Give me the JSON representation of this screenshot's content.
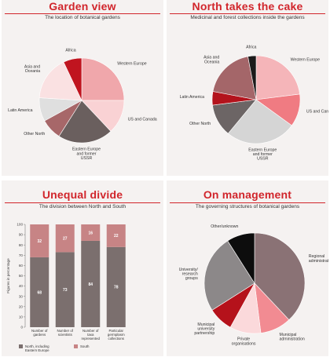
{
  "chart_data": [
    {
      "type": "pie",
      "title": "Garden view",
      "subtitle": "The location of botanical gardens",
      "slices": [
        {
          "label": "Western Europe",
          "value": 25,
          "color": "#f0a7ab"
        },
        {
          "label": "US and Canada",
          "value": 13,
          "color": "#f9d2d4"
        },
        {
          "label": "Eastern Europe and former USSR",
          "value": 21,
          "color": "#6a5f5e"
        },
        {
          "label": "Other North",
          "value": 8,
          "color": "#a76769"
        },
        {
          "label": "Latin America",
          "value": 9,
          "color": "#dfdfdf"
        },
        {
          "label": "Asia and Oceania",
          "value": 17,
          "color": "#fae1e2"
        },
        {
          "label": "Africa",
          "value": 7,
          "color": "#c0141f"
        }
      ]
    },
    {
      "type": "pie",
      "title": "North takes the cake",
      "subtitle": "Medicinal and forest collections inside the gardens",
      "slices": [
        {
          "label": "Western Europe",
          "value": 23,
          "color": "#f5b5b9"
        },
        {
          "label": "US and Canada",
          "value": 12,
          "color": "#f07b82"
        },
        {
          "label": "Eastern Europe and former USSR",
          "value": 26,
          "color": "#d5d5d5"
        },
        {
          "label": "Other North",
          "value": 12,
          "color": "#6c6565"
        },
        {
          "label": "Latin America",
          "value": 5,
          "color": "#b3131c"
        },
        {
          "label": "Asia and Oceania",
          "value": 19,
          "color": "#a46669"
        },
        {
          "label": "Africa",
          "value": 3,
          "color": "#1c1a1a"
        }
      ]
    },
    {
      "type": "bar",
      "stacked": true,
      "title": "Unequal divide",
      "subtitle": "The division between North and South",
      "ylabel": "Figures in percentage",
      "ylim": [
        0,
        100
      ],
      "yticks": [
        0,
        10,
        20,
        30,
        40,
        50,
        60,
        70,
        80,
        90,
        100
      ],
      "categories": [
        "Number of gardens",
        "Number of scientists",
        "Number of taxa represented",
        "Particular germplasm collections"
      ],
      "series": [
        {
          "name": "North, including Eastern Europe",
          "values": [
            68,
            73,
            84,
            78
          ],
          "labels": [
            "68",
            "73",
            "84",
            "78"
          ],
          "color": "#7b6f6e"
        },
        {
          "name": "South",
          "values": [
            32,
            27,
            16,
            22
          ],
          "labels": [
            "32",
            "27",
            "16",
            "22"
          ],
          "color": "#c78485"
        }
      ]
    },
    {
      "type": "pie",
      "title": "On management",
      "subtitle": "The governing structures of botanical gardens",
      "slices": [
        {
          "label": "Regional administration",
          "value": 38,
          "color": "#8a7275"
        },
        {
          "label": "Municipal administration",
          "value": 10,
          "color": "#f28b92"
        },
        {
          "label": "Private organisations",
          "value": 10,
          "color": "#fbd9db"
        },
        {
          "label": "Municipal university partnership",
          "value": 8,
          "color": "#b5121b"
        },
        {
          "label": "University/ research groups",
          "value": 25,
          "color": "#8c8889"
        },
        {
          "label": "Other/unknown",
          "value": 9,
          "color": "#0d0d0d"
        }
      ]
    }
  ]
}
